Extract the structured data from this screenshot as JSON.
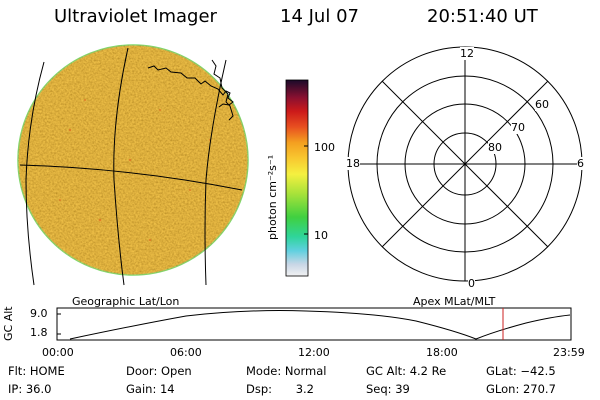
{
  "header": {
    "title": "Ultraviolet Imager",
    "date": "14 Jul 07",
    "time": "20:51:40 UT"
  },
  "colorbar": {
    "unit_label": "photon cm⁻²s⁻¹",
    "ticks": [
      "100",
      "10"
    ]
  },
  "polar_plot": {
    "mlt_labels": [
      "12",
      "18",
      "6",
      "0"
    ],
    "lat_labels": [
      "60",
      "70",
      "80"
    ]
  },
  "panel_labels": {
    "left": "Geographic Lat/Lon",
    "right": "Apex MLat/MLT"
  },
  "altitude_plot": {
    "ylabel": "GC Alt",
    "yticks": [
      "9.0",
      "1.8"
    ],
    "xticks": [
      "00:00",
      "06:00",
      "12:00",
      "18:00",
      "23:59"
    ],
    "marker_color": "#cc2222"
  },
  "info": {
    "flt_label": "Flt:",
    "flt_value": "HOME",
    "ip_label": "IP:",
    "ip_value": "36.0",
    "door_label": "Door:",
    "door_value": "Open",
    "gain_label": "Gain:",
    "gain_value": "14",
    "mode_label": "Mode:",
    "mode_value": "Normal",
    "dsp_label": "Dsp:",
    "dsp_value": "3.2",
    "gcalt_label": "GC Alt:",
    "gcalt_value": "4.2 Re",
    "seq_label": "Seq:",
    "seq_value": "39",
    "glat_label": "GLat:",
    "glat_value": "−42.5",
    "glon_label": "GLon:",
    "glon_value": "270.7"
  },
  "colors": {
    "earth_disk": "#f6b423",
    "disk_edge": "#7ed86a"
  }
}
